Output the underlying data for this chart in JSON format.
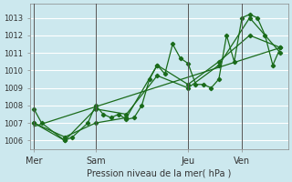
{
  "background_color": "#cce8ee",
  "grid_color": "#ffffff",
  "line_color": "#1a6b1a",
  "marker_color": "#1a6b1a",
  "title": "Pression niveau de la mer( hPa )",
  "ylim": [
    1005.5,
    1013.8
  ],
  "yticks": [
    1006,
    1007,
    1008,
    1009,
    1010,
    1011,
    1012,
    1013
  ],
  "day_labels": [
    "Mer",
    "Sam",
    "Jeu",
    "Ven"
  ],
  "day_positions": [
    0,
    8,
    20,
    27
  ],
  "xlim": [
    -0.5,
    33
  ],
  "series1": {
    "x": [
      0,
      1,
      4,
      5,
      7,
      8,
      9,
      10,
      11,
      12,
      13,
      14,
      15,
      16,
      17,
      18,
      19,
      20,
      21,
      22,
      23,
      24,
      25,
      26,
      27,
      28,
      29,
      30,
      31,
      32
    ],
    "y": [
      1007.8,
      1007.0,
      1006.0,
      1006.2,
      1007.0,
      1008.0,
      1007.5,
      1007.3,
      1007.5,
      1007.2,
      1007.3,
      1008.0,
      1009.5,
      1010.3,
      1009.8,
      1011.5,
      1010.7,
      1010.4,
      1009.2,
      1009.2,
      1009.0,
      1009.5,
      1012.0,
      1010.5,
      1013.0,
      1013.2,
      1013.0,
      1012.0,
      1010.3,
      1011.3
    ]
  },
  "series2": {
    "x": [
      0,
      4,
      8,
      12,
      16,
      20,
      24,
      28,
      32
    ],
    "y": [
      1007.0,
      1006.2,
      1007.0,
      1007.3,
      1010.3,
      1009.2,
      1010.5,
      1012.0,
      1011.3
    ]
  },
  "series3": {
    "x": [
      0,
      4,
      8,
      12,
      16,
      20,
      24,
      28,
      32
    ],
    "y": [
      1007.0,
      1006.0,
      1007.8,
      1007.5,
      1009.7,
      1009.0,
      1010.3,
      1013.0,
      1011.0
    ]
  },
  "trend": {
    "x": [
      0,
      32
    ],
    "y": [
      1006.8,
      1011.3
    ]
  }
}
